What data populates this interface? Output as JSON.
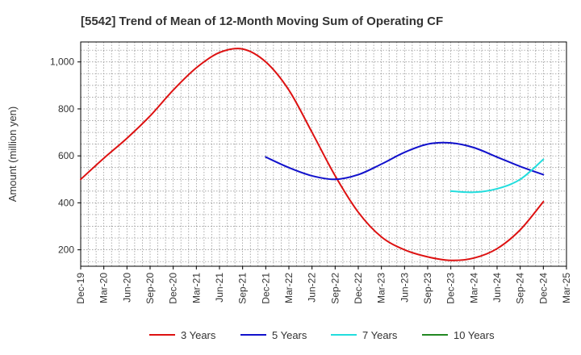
{
  "chart_data": {
    "type": "line",
    "title": "[5542]  Trend of Mean of 12-Month Moving Sum of Operating CF",
    "xlabel": "",
    "ylabel": "Amount (million yen)",
    "ylim": [
      130,
      1085
    ],
    "yticks": [
      200,
      400,
      600,
      800,
      1000
    ],
    "ytick_labels": [
      "200",
      "400",
      "600",
      "800",
      "1,000"
    ],
    "grid": true,
    "legend_position": "bottom",
    "x_categories": [
      "Dec-19",
      "Mar-20",
      "Jun-20",
      "Sep-20",
      "Dec-20",
      "Mar-21",
      "Jun-21",
      "Sep-21",
      "Dec-21",
      "Mar-22",
      "Jun-22",
      "Sep-22",
      "Dec-22",
      "Mar-23",
      "Jun-23",
      "Sep-23",
      "Dec-23",
      "Mar-24",
      "Jun-24",
      "Sep-24",
      "Dec-24",
      "Mar-25"
    ],
    "series": [
      {
        "name": "3 Years",
        "color": "#dd1111",
        "values": [
          500,
          590,
          675,
          770,
          880,
          975,
          1040,
          1055,
          1000,
          880,
          700,
          515,
          360,
          255,
          200,
          170,
          155,
          165,
          205,
          285,
          405,
          null
        ]
      },
      {
        "name": "5 Years",
        "color": "#1111cc",
        "values": [
          null,
          null,
          null,
          null,
          null,
          null,
          null,
          null,
          595,
          550,
          515,
          500,
          520,
          565,
          615,
          650,
          655,
          635,
          595,
          555,
          520,
          null
        ]
      },
      {
        "name": "7 Years",
        "color": "#22dddd",
        "values": [
          null,
          null,
          null,
          null,
          null,
          null,
          null,
          null,
          null,
          null,
          null,
          null,
          null,
          null,
          null,
          null,
          450,
          445,
          460,
          500,
          585,
          null
        ]
      },
      {
        "name": "10 Years",
        "color": "#228822",
        "values": [
          null,
          null,
          null,
          null,
          null,
          null,
          null,
          null,
          null,
          null,
          null,
          null,
          null,
          null,
          null,
          null,
          null,
          null,
          null,
          null,
          null,
          null
        ]
      }
    ]
  }
}
